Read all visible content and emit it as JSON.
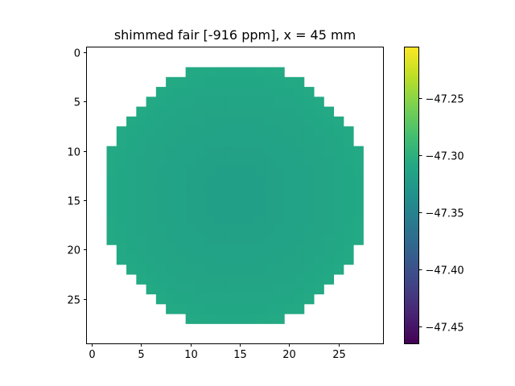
{
  "chart_data": {
    "type": "heatmap",
    "title": "shimmed fair [-916 ppm], x = 45 mm",
    "xlabel": "",
    "ylabel": "",
    "xlim": [
      -0.5,
      29.5
    ],
    "ylim": [
      29.5,
      -0.5
    ],
    "x_ticks": [
      0,
      5,
      10,
      15,
      20,
      25
    ],
    "y_ticks": [
      0,
      5,
      10,
      15,
      20,
      25
    ],
    "grid": false,
    "colormap": "viridis",
    "value_range": [
      -47.465,
      -47.205
    ],
    "colorbar_ticks": [
      "−47.45",
      "−47.40",
      "−47.35",
      "−47.30",
      "−47.25"
    ],
    "colorbar_tick_values": [
      -47.45,
      -47.4,
      -47.35,
      -47.3,
      -47.25
    ],
    "mask_rows": [
      {
        "row": 2,
        "cols": [
          10,
          19
        ]
      },
      {
        "row": 3,
        "cols": [
          8,
          21
        ]
      },
      {
        "row": 4,
        "cols": [
          7,
          22
        ]
      },
      {
        "row": 5,
        "cols": [
          6,
          23
        ]
      },
      {
        "row": 6,
        "cols": [
          5,
          24
        ]
      },
      {
        "row": 7,
        "cols": [
          4,
          25
        ]
      },
      {
        "row": 8,
        "cols": [
          3,
          26
        ]
      },
      {
        "row": 9,
        "cols": [
          3,
          26
        ]
      },
      {
        "row": 10,
        "cols": [
          2,
          27
        ]
      },
      {
        "row": 11,
        "cols": [
          2,
          27
        ]
      },
      {
        "row": 12,
        "cols": [
          2,
          27
        ]
      },
      {
        "row": 13,
        "cols": [
          2,
          27
        ]
      },
      {
        "row": 14,
        "cols": [
          2,
          27
        ]
      },
      {
        "row": 15,
        "cols": [
          2,
          27
        ]
      },
      {
        "row": 16,
        "cols": [
          2,
          27
        ]
      },
      {
        "row": 17,
        "cols": [
          2,
          27
        ]
      },
      {
        "row": 18,
        "cols": [
          2,
          27
        ]
      },
      {
        "row": 19,
        "cols": [
          2,
          27
        ]
      },
      {
        "row": 20,
        "cols": [
          3,
          26
        ]
      },
      {
        "row": 21,
        "cols": [
          3,
          26
        ]
      },
      {
        "row": 22,
        "cols": [
          4,
          25
        ]
      },
      {
        "row": 23,
        "cols": [
          5,
          24
        ]
      },
      {
        "row": 24,
        "cols": [
          6,
          23
        ]
      },
      {
        "row": 25,
        "cols": [
          7,
          22
        ]
      },
      {
        "row": 26,
        "cols": [
          8,
          21
        ]
      },
      {
        "row": 27,
        "cols": [
          10,
          19
        ]
      }
    ],
    "value_center": -47.318,
    "value_edge": -47.308,
    "center": [
      14.5,
      14.5
    ]
  }
}
